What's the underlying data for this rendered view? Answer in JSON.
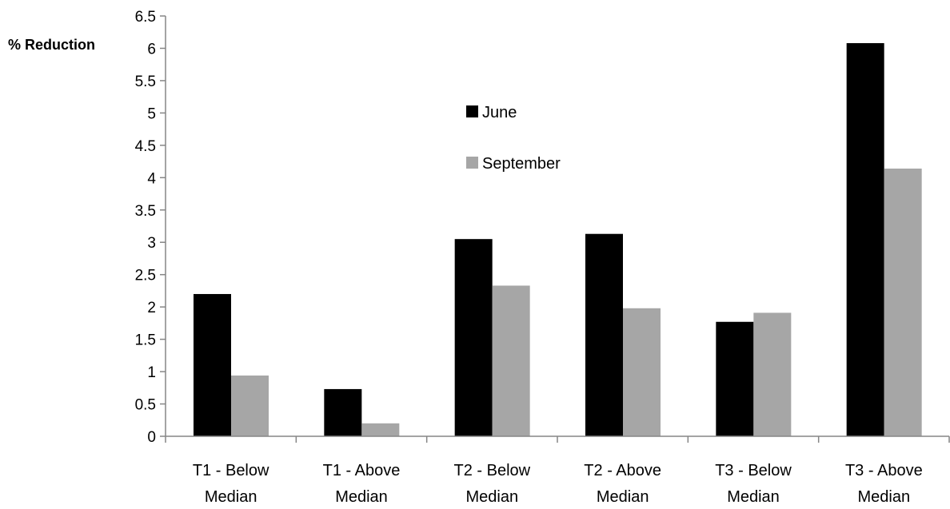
{
  "chart_data": {
    "type": "bar",
    "ylabel": "% Reduction",
    "ylim": [
      0,
      6.5
    ],
    "yticks": [
      "0",
      "0.5",
      "1",
      "1.5",
      "2",
      "2.5",
      "3",
      "3.5",
      "4",
      "4.5",
      "5",
      "5.5",
      "6",
      "6.5"
    ],
    "categories": [
      [
        "T1 - Below",
        "Median"
      ],
      [
        "T1 - Above",
        "Median"
      ],
      [
        "T2 - Below",
        "Median"
      ],
      [
        "T2 - Above",
        "Median"
      ],
      [
        "T3 - Below",
        "Median"
      ],
      [
        "T3 - Above",
        "Median"
      ]
    ],
    "series": [
      {
        "name": "June",
        "color": "#000000",
        "values": [
          2.2,
          0.73,
          3.05,
          3.13,
          1.77,
          6.08
        ]
      },
      {
        "name": "September",
        "color": "#a6a6a6",
        "values": [
          0.94,
          0.2,
          2.33,
          1.98,
          1.91,
          4.14
        ]
      }
    ],
    "grid": false,
    "legend": "center"
  }
}
